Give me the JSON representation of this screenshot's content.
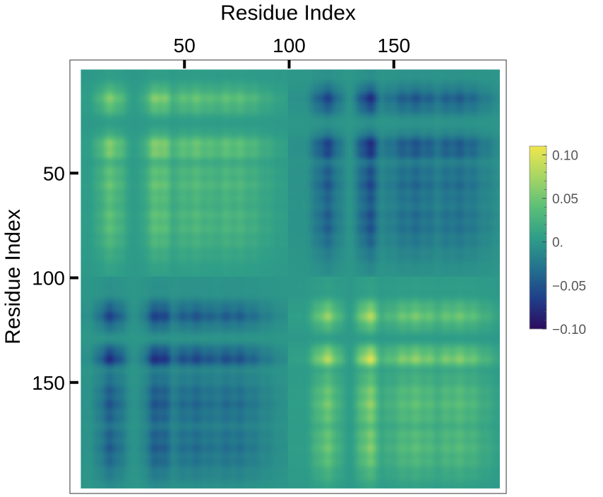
{
  "chart_data": {
    "type": "heatmap",
    "title": "",
    "xlabel": "Residue Index",
    "ylabel": "Residue Index",
    "x_axis_position": "top",
    "x_range": [
      1,
      200
    ],
    "y_range": [
      1,
      200
    ],
    "x_ticks": [
      {
        "value": 50,
        "label": "50"
      },
      {
        "value": 100,
        "label": "100"
      },
      {
        "value": 150,
        "label": "150"
      }
    ],
    "y_ticks": [
      {
        "value": 50,
        "label": "50"
      },
      {
        "value": 100,
        "label": "100"
      },
      {
        "value": 150,
        "label": "150"
      }
    ],
    "colorbar": {
      "range": [
        -0.1,
        0.11
      ],
      "colormap": [
        "#2c0b5e",
        "#1f3f8a",
        "#23728e",
        "#2f9e88",
        "#5bbf78",
        "#a6d664",
        "#f0e64c"
      ],
      "ticks": [
        {
          "value": 0.1,
          "label": "0.10"
        },
        {
          "value": 0.05,
          "label": "0.05"
        },
        {
          "value": 0.0,
          "label": "0."
        },
        {
          "value": -0.05,
          "label": "−0.05"
        },
        {
          "value": -0.1,
          "label": "−0.10"
        }
      ]
    },
    "domains": [
      {
        "range": [
          1,
          99
        ],
        "sign": 1
      },
      {
        "range": [
          100,
          200
        ],
        "sign": -1
      }
    ],
    "profile_peaks": [
      {
        "center": 15,
        "width": 5,
        "amplitude": 0.75
      },
      {
        "center": 38,
        "width": 5,
        "amplitude": 0.85
      },
      {
        "center": 55,
        "width": 12,
        "amplitude": 0.6
      },
      {
        "center": 72,
        "width": 14,
        "amplitude": 0.55
      },
      {
        "center": 118,
        "width": 5,
        "amplitude": 0.8
      },
      {
        "center": 138,
        "width": 4,
        "amplitude": 1.0
      },
      {
        "center": 160,
        "width": 12,
        "amplitude": 0.65
      },
      {
        "center": 180,
        "width": 12,
        "amplitude": 0.6
      }
    ],
    "max_value": 0.11,
    "min_value": -0.1,
    "grid": false
  }
}
